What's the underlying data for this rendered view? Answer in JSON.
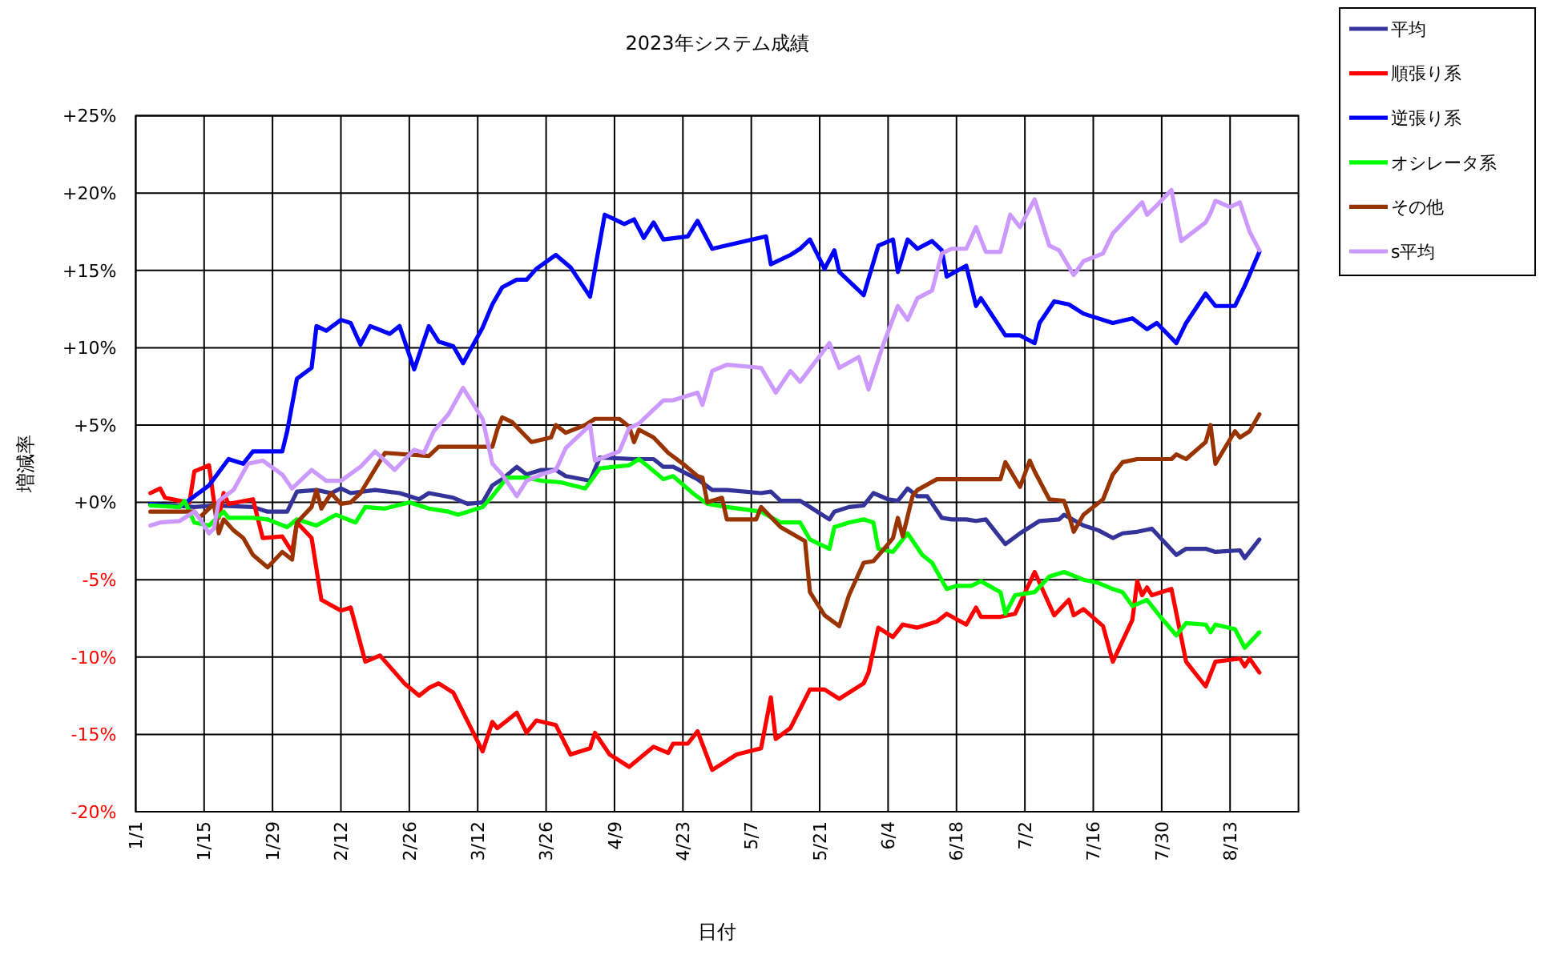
{
  "chart_data": {
    "type": "line",
    "title": "2023年システム成績",
    "xlabel": "日付",
    "ylabel": "増減率",
    "xlim": [
      "--01-01",
      "--08-27"
    ],
    "xticks": [
      {
        "value": "--01-01",
        "label": "1/1"
      },
      {
        "value": "--01-15",
        "label": "1/15"
      },
      {
        "value": "--01-29",
        "label": "1/29"
      },
      {
        "value": "--02-12",
        "label": "2/12"
      },
      {
        "value": "--02-26",
        "label": "2/26"
      },
      {
        "value": "--03-12",
        "label": "3/12"
      },
      {
        "value": "--03-26",
        "label": "3/26"
      },
      {
        "value": "--04-09",
        "label": "4/9"
      },
      {
        "value": "--04-23",
        "label": "4/23"
      },
      {
        "value": "--05-07",
        "label": "5/7"
      },
      {
        "value": "--05-21",
        "label": "5/21"
      },
      {
        "value": "--06-04",
        "label": "6/4"
      },
      {
        "value": "--06-18",
        "label": "6/18"
      },
      {
        "value": "--07-02",
        "label": "7/2"
      },
      {
        "value": "--07-16",
        "label": "7/16"
      },
      {
        "value": "--07-30",
        "label": "7/30"
      },
      {
        "value": "--08-13",
        "label": "8/13"
      }
    ],
    "ylim": [
      -20,
      25
    ],
    "yticks": [
      {
        "value": -20,
        "label": "-20%"
      },
      {
        "value": -15,
        "label": "-15%"
      },
      {
        "value": -10,
        "label": "-10%"
      },
      {
        "value": -5,
        "label": "-5%"
      },
      {
        "value": 0,
        "label": "+0%"
      },
      {
        "value": 5,
        "label": "+5%"
      },
      {
        "value": 10,
        "label": "+10%"
      },
      {
        "value": 15,
        "label": "+15%"
      },
      {
        "value": 20,
        "label": "+20%"
      },
      {
        "value": 25,
        "label": "+25%"
      }
    ],
    "grid": true,
    "legend": "top right",
    "marker": "none",
    "line_style": "solid",
    "series": [
      {
        "name": "平均",
        "color": "#333399",
        "x": [
          "--01-04",
          "--01-13",
          "--01-17",
          "--01-25",
          "--01-28",
          "--02-01",
          "--02-03",
          "--02-07",
          "--02-10",
          "--02-12",
          "--02-14",
          "--02-19",
          "--02-24",
          "--02-28",
          "--03-02",
          "--03-07",
          "--03-10",
          "--03-13",
          "--03-15",
          "--03-17",
          "--03-20",
          "--03-22",
          "--03-25",
          "--03-28",
          "--03-30",
          "--04-04",
          "--04-06",
          "--04-13",
          "--04-17",
          "--04-19",
          "--04-21",
          "--04-26",
          "--04-29",
          "--05-02",
          "--05-09",
          "--05-11",
          "--05-13",
          "--05-17",
          "--05-23",
          "--05-24",
          "--05-27",
          "--05-30",
          "--06-01",
          "--06-04",
          "--06-06",
          "--06-08",
          "--06-10",
          "--06-12",
          "--06-15",
          "--06-17",
          "--06-20",
          "--06-22",
          "--06-24",
          "--06-25",
          "--06-28",
          "--07-01",
          "--07-05",
          "--07-09",
          "--07-10",
          "--07-14",
          "--07-17",
          "--07-20",
          "--07-22",
          "--07-25",
          "--07-28",
          "--08-02",
          "--08-04",
          "--08-08",
          "--08-10",
          "--08-15",
          "--08-16",
          "--08-19"
        ],
        "values": [
          -0.1,
          -0.3,
          -0.2,
          -0.3,
          -0.6,
          -0.6,
          0.7,
          0.8,
          0.6,
          0.9,
          0.6,
          0.8,
          0.6,
          0.2,
          0.6,
          0.3,
          -0.1,
          0,
          1.1,
          1.5,
          2.3,
          1.8,
          2.1,
          2.1,
          1.7,
          1.4,
          2.9,
          2.8,
          2.8,
          2.3,
          2.3,
          1.5,
          0.8,
          0.8,
          0.6,
          0.7,
          0.1,
          0.1,
          -1.1,
          -0.6,
          -0.3,
          -0.2,
          0.6,
          0.2,
          0.1,
          0.9,
          0.4,
          0.4,
          -1.0,
          -1.1,
          -1.1,
          -1.2,
          -1.1,
          -1.5,
          -2.7,
          -2.0,
          -1.2,
          -1.1,
          -0.8,
          -1.5,
          -1.8,
          -2.3,
          -2.0,
          -1.9,
          -1.7,
          -3.4,
          -3.0,
          -3.0,
          -3.2,
          -3.1,
          -3.6,
          -2.4
        ]
      },
      {
        "name": "順張り系",
        "color": "#ff0000",
        "x": [
          "--01-04",
          "--01-06",
          "--01-07",
          "--01-10",
          "--01-12",
          "--01-13",
          "--01-16",
          "--01-17",
          "--01-18",
          "--01-19",
          "--01-20",
          "--01-25",
          "--01-27",
          "--01-31",
          "--02-02",
          "--02-03",
          "--02-06",
          "--02-08",
          "--02-12",
          "--02-14",
          "--02-17",
          "--02-20",
          "--02-25",
          "--02-28",
          "--03-02",
          "--03-04",
          "--03-07",
          "--03-10",
          "--03-13",
          "--03-15",
          "--03-16",
          "--03-20",
          "--03-22",
          "--03-24",
          "--03-28",
          "--03-31",
          "--04-04",
          "--04-05",
          "--04-08",
          "--04-12",
          "--04-17",
          "--04-20",
          "--04-21",
          "--04-24",
          "--04-26",
          "--04-29",
          "--05-04",
          "--05-09",
          "--05-11",
          "--05-12",
          "--05-15",
          "--05-19",
          "--05-22",
          "--05-25",
          "--05-30",
          "--05-31",
          "--06-02",
          "--06-05",
          "--06-07",
          "--06-10",
          "--06-12",
          "--06-14",
          "--06-16",
          "--06-20",
          "--06-22",
          "--06-23",
          "--06-27",
          "--06-30",
          "--07-04",
          "--07-08",
          "--07-11",
          "--07-12",
          "--07-14",
          "--07-18",
          "--07-20",
          "--07-24",
          "--07-25",
          "--07-26",
          "--07-27",
          "--07-28",
          "--08-01",
          "--08-04",
          "--08-08",
          "--08-10",
          "--08-15",
          "--08-16",
          "--08-17",
          "--08-19"
        ],
        "values": [
          0.6,
          0.9,
          0.3,
          0.1,
          0,
          2.0,
          2.4,
          0.1,
          -1.0,
          0.6,
          -0.1,
          0.2,
          -2.3,
          -2.2,
          -3.2,
          -1.3,
          -2.3,
          -6.3,
          -7.0,
          -6.8,
          -10.3,
          -9.9,
          -11.7,
          -12.5,
          -12.0,
          -11.7,
          -12.3,
          -14.2,
          -16.1,
          -14.2,
          -14.6,
          -13.6,
          -14.9,
          -14.1,
          -14.4,
          -16.3,
          -15.9,
          -14.9,
          -16.3,
          -17.1,
          -15.8,
          -16.2,
          -15.6,
          -15.6,
          -14.8,
          -17.3,
          -16.3,
          -15.9,
          -12.6,
          -15.3,
          -14.6,
          -12.1,
          -12.1,
          -12.7,
          -11.7,
          -11.0,
          -8.1,
          -8.7,
          -7.9,
          -8.1,
          -7.9,
          -7.7,
          -7.2,
          -7.9,
          -6.8,
          -7.4,
          -7.4,
          -7.2,
          -4.5,
          -7.3,
          -6.3,
          -7.3,
          -6.9,
          -8.0,
          -10.3,
          -7.6,
          -5.1,
          -6.0,
          -5.5,
          -6.0,
          -5.6,
          -10.3,
          -11.9,
          -10.3,
          -10.1,
          -10.6,
          -10.1,
          -11.0
        ]
      },
      {
        "name": "逆張り系",
        "color": "#0000ff",
        "x": [
          "--01-04",
          "--01-10",
          "--01-16",
          "--01-20",
          "--01-23",
          "--01-25",
          "--01-31",
          "--02-01",
          "--02-03",
          "--02-06",
          "--02-07",
          "--02-09",
          "--02-12",
          "--02-14",
          "--02-16",
          "--02-18",
          "--02-22",
          "--02-24",
          "--02-27",
          "--03-02",
          "--03-04",
          "--03-07",
          "--03-09",
          "--03-13",
          "--03-15",
          "--03-17",
          "--03-20",
          "--03-22",
          "--03-24",
          "--03-28",
          "--03-31",
          "--04-04",
          "--04-07",
          "--04-11",
          "--04-13",
          "--04-15",
          "--04-17",
          "--04-19",
          "--04-24",
          "--04-26",
          "--04-29",
          "--05-10",
          "--05-11",
          "--05-15",
          "--05-17",
          "--05-19",
          "--05-22",
          "--05-24",
          "--05-25",
          "--05-30",
          "--06-02",
          "--06-05",
          "--06-06",
          "--06-08",
          "--06-10",
          "--06-13",
          "--06-15",
          "--06-16",
          "--06-20",
          "--06-22",
          "--06-23",
          "--06-28",
          "--07-01",
          "--07-04",
          "--07-05",
          "--07-08",
          "--07-11",
          "--07-14",
          "--07-20",
          "--07-24",
          "--07-27",
          "--07-29",
          "--08-02",
          "--08-04",
          "--08-08",
          "--08-10",
          "--08-14",
          "--08-16",
          "--08-19"
        ],
        "values": [
          -0.1,
          -0.3,
          1.1,
          2.8,
          2.5,
          3.3,
          3.3,
          4.6,
          8.0,
          8.7,
          11.4,
          11.1,
          11.8,
          11.6,
          10.2,
          11.4,
          10.9,
          11.4,
          8.6,
          11.4,
          10.4,
          10.1,
          9.0,
          11.3,
          12.8,
          13.9,
          14.4,
          14.4,
          15.1,
          16.0,
          15.2,
          13.3,
          18.6,
          18.0,
          18.3,
          17.1,
          18.1,
          17.0,
          17.2,
          18.2,
          16.4,
          17.2,
          15.4,
          16.0,
          16.4,
          17.0,
          15.1,
          16.3,
          14.9,
          13.4,
          16.6,
          17.0,
          14.9,
          17.0,
          16.4,
          16.9,
          16.3,
          14.6,
          15.3,
          12.7,
          13.2,
          10.8,
          10.8,
          10.3,
          11.6,
          13.0,
          12.8,
          12.2,
          11.6,
          11.9,
          11.2,
          11.6,
          10.3,
          11.6,
          13.5,
          12.7,
          12.7,
          14.0,
          16.2
        ]
      },
      {
        "name": "オシレータ系",
        "color": "#00ff00",
        "x": [
          "--01-04",
          "--01-10",
          "--01-11",
          "--01-13",
          "--01-16",
          "--01-19",
          "--01-20",
          "--01-25",
          "--01-28",
          "--02-01",
          "--02-03",
          "--02-07",
          "--02-11",
          "--02-15",
          "--02-17",
          "--02-21",
          "--02-26",
          "--03-02",
          "--03-06",
          "--03-08",
          "--03-13",
          "--03-15",
          "--03-18",
          "--03-22",
          "--03-25",
          "--03-29",
          "--04-03",
          "--04-06",
          "--04-12",
          "--04-14",
          "--04-16",
          "--04-19",
          "--04-21",
          "--04-25",
          "--04-28",
          "--05-02",
          "--05-09",
          "--05-13",
          "--05-17",
          "--05-19",
          "--05-23",
          "--05-24",
          "--05-27",
          "--05-30",
          "--06-01",
          "--06-02",
          "--06-05",
          "--06-08",
          "--06-11",
          "--06-13",
          "--06-16",
          "--06-18",
          "--06-21",
          "--06-23",
          "--06-27",
          "--06-28",
          "--06-30",
          "--07-04",
          "--07-07",
          "--07-10",
          "--07-14",
          "--07-17",
          "--07-20",
          "--07-22",
          "--07-24",
          "--07-27",
          "--07-30",
          "--08-02",
          "--08-04",
          "--08-08",
          "--08-09",
          "--08-10",
          "--08-14",
          "--08-16",
          "--08-19"
        ],
        "values": [
          -0.2,
          -0.3,
          0.1,
          -1.3,
          -1.5,
          -0.6,
          -1.0,
          -1.0,
          -1.1,
          -1.6,
          -1.1,
          -1.5,
          -0.8,
          -1.3,
          -0.3,
          -0.4,
          0,
          -0.4,
          -0.6,
          -0.8,
          -0.3,
          0.4,
          1.6,
          1.6,
          1.4,
          1.3,
          0.9,
          2.2,
          2.4,
          2.8,
          2.3,
          1.5,
          1.7,
          0.6,
          -0.1,
          -0.3,
          -0.6,
          -1.3,
          -1.3,
          -2.4,
          -3.0,
          -1.6,
          -1.3,
          -1.1,
          -1.3,
          -3.0,
          -3.2,
          -2.0,
          -3.4,
          -3.9,
          -5.6,
          -5.4,
          -5.4,
          -5.1,
          -5.8,
          -7.2,
          -6.0,
          -5.8,
          -4.8,
          -4.5,
          -5.0,
          -5.2,
          -5.6,
          -5.8,
          -6.7,
          -6.3,
          -7.5,
          -8.6,
          -7.8,
          -7.9,
          -8.4,
          -7.9,
          -8.2,
          -9.4,
          -8.4
        ]
      },
      {
        "name": "その他",
        "color": "#993300",
        "x": [
          "--01-04",
          "--01-13",
          "--01-14",
          "--01-17",
          "--01-18",
          "--01-19",
          "--01-21",
          "--01-23",
          "--01-25",
          "--01-28",
          "--01-31",
          "--02-02",
          "--02-03",
          "--02-06",
          "--02-07",
          "--02-08",
          "--02-10",
          "--02-12",
          "--02-14",
          "--02-16",
          "--02-21",
          "--03-02",
          "--03-04",
          "--03-15",
          "--03-16",
          "--03-17",
          "--03-19",
          "--03-23",
          "--03-27",
          "--03-28",
          "--03-30",
          "--04-03",
          "--04-05",
          "--04-10",
          "--04-12",
          "--04-13",
          "--04-14",
          "--04-17",
          "--04-20",
          "--04-23",
          "--04-26",
          "--04-27",
          "--04-28",
          "--05-01",
          "--05-02",
          "--05-08",
          "--05-09",
          "--05-13",
          "--05-18",
          "--05-19",
          "--05-22",
          "--05-25",
          "--05-27",
          "--05-30",
          "--06-01",
          "--06-04",
          "--06-05",
          "--06-06",
          "--06-07",
          "--06-09",
          "--06-10",
          "--06-14",
          "--06-27",
          "--06-28",
          "--07-01",
          "--07-03",
          "--07-04",
          "--07-07",
          "--07-10",
          "--07-11",
          "--07-12",
          "--07-14",
          "--07-18",
          "--07-20",
          "--07-22",
          "--07-25",
          "--08-01",
          "--08-02",
          "--08-04",
          "--08-08",
          "--08-09",
          "--08-10",
          "--08-14",
          "--08-15",
          "--08-17",
          "--08-19"
        ],
        "values": [
          -0.6,
          -0.6,
          -1.0,
          -0.1,
          -2.0,
          -1.1,
          -1.8,
          -2.3,
          -3.4,
          -4.2,
          -3.2,
          -3.7,
          -1.3,
          -0.3,
          0.8,
          -0.4,
          0.6,
          -0.1,
          0,
          0.6,
          3.2,
          3.0,
          3.6,
          3.6,
          4.7,
          5.5,
          5.2,
          3.9,
          4.2,
          5.0,
          4.5,
          5.0,
          5.4,
          5.4,
          4.9,
          3.9,
          4.7,
          4.2,
          3.2,
          2.5,
          1.7,
          1.6,
          0,
          0.3,
          -1.1,
          -1.1,
          -0.3,
          -1.6,
          -2.5,
          -5.8,
          -7.3,
          -8.0,
          -6.0,
          -3.9,
          -3.8,
          -2.7,
          -2.3,
          -1.0,
          -2.2,
          0.4,
          0.8,
          1.5,
          1.5,
          2.6,
          1.0,
          2.7,
          2.0,
          0.2,
          0.1,
          -0.8,
          -1.9,
          -0.8,
          0.2,
          1.8,
          2.6,
          2.8,
          2.8,
          3.1,
          2.8,
          3.9,
          5.0,
          2.5,
          4.6,
          4.2,
          4.6,
          5.7
        ]
      },
      {
        "name": "s平均",
        "color": "#cc99ff",
        "x": [
          "--01-04",
          "--01-06",
          "--01-10",
          "--01-13",
          "--01-14",
          "--01-16",
          "--01-17",
          "--01-18",
          "--01-21",
          "--01-24",
          "--01-27",
          "--01-31",
          "--02-02",
          "--02-06",
          "--02-09",
          "--02-12",
          "--02-16",
          "--02-19",
          "--02-23",
          "--02-27",
          "--03-01",
          "--03-03",
          "--03-06",
          "--03-09",
          "--03-13",
          "--03-15",
          "--03-17",
          "--03-20",
          "--03-22",
          "--03-25",
          "--03-28",
          "--03-30",
          "--04-04",
          "--04-05",
          "--04-10",
          "--04-12",
          "--04-14",
          "--04-19",
          "--04-21",
          "--04-26",
          "--04-27",
          "--04-29",
          "--05-02",
          "--05-09",
          "--05-12",
          "--05-15",
          "--05-17",
          "--05-23",
          "--05-25",
          "--05-29",
          "--05-31",
          "--06-03",
          "--06-06",
          "--06-08",
          "--06-10",
          "--06-13",
          "--06-15",
          "--06-17",
          "--06-20",
          "--06-22",
          "--06-24",
          "--06-27",
          "--06-29",
          "--07-01",
          "--07-04",
          "--07-07",
          "--07-09",
          "--07-12",
          "--07-14",
          "--07-18",
          "--07-20",
          "--07-26",
          "--07-27",
          "--07-29",
          "--08-01",
          "--08-03",
          "--08-08",
          "--08-09",
          "--08-10",
          "--08-13",
          "--08-15",
          "--08-17",
          "--08-19"
        ],
        "values": [
          -1.5,
          -1.3,
          -1.2,
          -0.6,
          -1.0,
          -2.0,
          -1.7,
          0.1,
          0.8,
          2.5,
          2.7,
          1.8,
          0.9,
          2.1,
          1.4,
          1.4,
          2.3,
          3.3,
          2.1,
          3.4,
          3.2,
          4.6,
          5.7,
          7.4,
          5.4,
          2.5,
          1.8,
          0.4,
          1.4,
          1.8,
          2.1,
          3.5,
          5.0,
          2.7,
          3.3,
          4.8,
          5.1,
          6.6,
          6.6,
          7.1,
          6.3,
          8.5,
          8.9,
          8.7,
          7.1,
          8.5,
          7.8,
          10.3,
          8.7,
          9.4,
          7.3,
          10.2,
          12.7,
          11.8,
          13.2,
          13.7,
          16.1,
          16.4,
          16.4,
          17.8,
          16.2,
          16.2,
          18.6,
          17.8,
          19.6,
          16.6,
          16.3,
          14.7,
          15.6,
          16.1,
          17.4,
          19.4,
          18.6,
          19.2,
          20.2,
          16.9,
          18.1,
          18.7,
          19.5,
          19.1,
          19.4,
          17.5,
          16.3
        ]
      }
    ]
  }
}
